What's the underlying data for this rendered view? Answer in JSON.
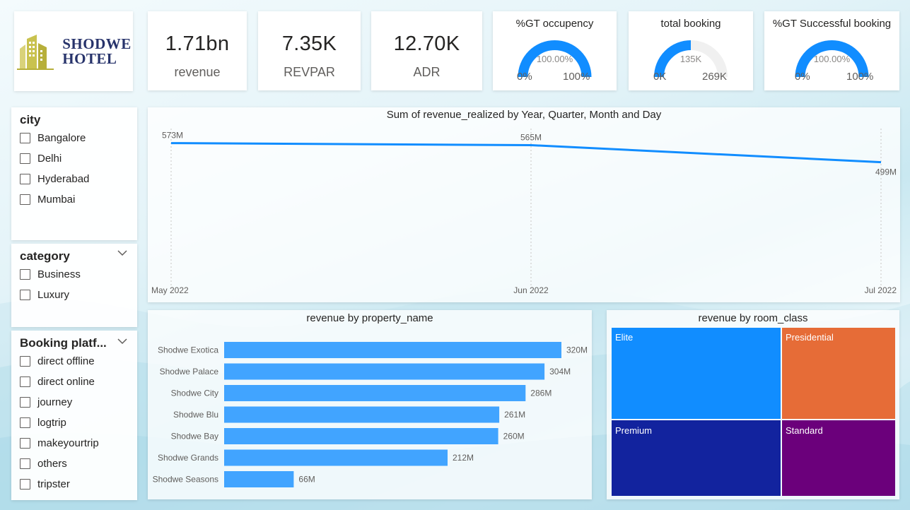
{
  "logo": {
    "line1": "SHODWE",
    "line2": "HOTEL"
  },
  "kpis": [
    {
      "value": "1.71bn",
      "label": "revenue"
    },
    {
      "value": "7.35K",
      "label": "REVPAR"
    },
    {
      "value": "12.70K",
      "label": "ADR"
    }
  ],
  "gauges": [
    {
      "title": "%GT occupency",
      "center": "100.00%",
      "min": "0%",
      "max": "100%",
      "fraction": 1.0
    },
    {
      "title": "total booking",
      "center": "135K",
      "min": "0K",
      "max": "269K",
      "fraction": 0.5
    },
    {
      "title": "%GT Successful booking",
      "center": "100.00%",
      "min": "0%",
      "max": "100%",
      "fraction": 1.0
    }
  ],
  "slicers": {
    "city": {
      "title": "city",
      "items": [
        "Bangalore",
        "Delhi",
        "Hyderabad",
        "Mumbai"
      ]
    },
    "category": {
      "title": "category",
      "items": [
        "Business",
        "Luxury"
      ]
    },
    "platform": {
      "title": "Booking platf...",
      "items": [
        "direct offline",
        "direct online",
        "journey",
        "logtrip",
        "makeyourtrip",
        "others",
        "tripster"
      ]
    }
  },
  "colors": {
    "line": "#118dff",
    "bar": "#41a4ff",
    "elite": "#118dff",
    "presidential": "#e66c37",
    "premium": "#12239e",
    "standard": "#6b007b",
    "gauge_fill": "#118dff",
    "gauge_track": "#f0f0f0"
  },
  "chart_data": [
    {
      "type": "line",
      "title": "Sum of revenue_realized by Year, Quarter, Month and Day",
      "categories": [
        "May 2022",
        "Jun 2022",
        "Jul 2022"
      ],
      "values": [
        573,
        565,
        499
      ],
      "data_labels": [
        "573M",
        "565M",
        "499M"
      ],
      "unit": "M",
      "ylim": [
        0,
        580
      ]
    },
    {
      "type": "bar",
      "title": "revenue by property_name",
      "categories": [
        "Shodwe Exotica",
        "Shodwe Palace",
        "Shodwe City",
        "Shodwe Blu",
        "Shodwe Bay",
        "Shodwe Grands",
        "Shodwe Seasons"
      ],
      "values": [
        320,
        304,
        286,
        261,
        260,
        212,
        66
      ],
      "data_labels": [
        "320M",
        "304M",
        "286M",
        "261M",
        "260M",
        "212M",
        "66M"
      ],
      "unit": "M"
    },
    {
      "type": "treemap",
      "title": "revenue by room_class",
      "categories": [
        "Elite",
        "Presidential",
        "Premium",
        "Standard"
      ]
    }
  ]
}
